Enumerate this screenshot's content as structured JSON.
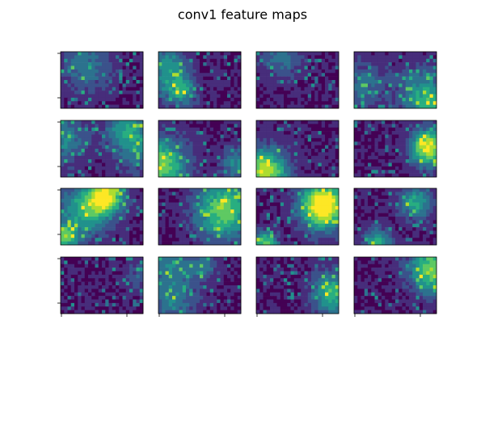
{
  "title": "conv1 feature maps"
}
